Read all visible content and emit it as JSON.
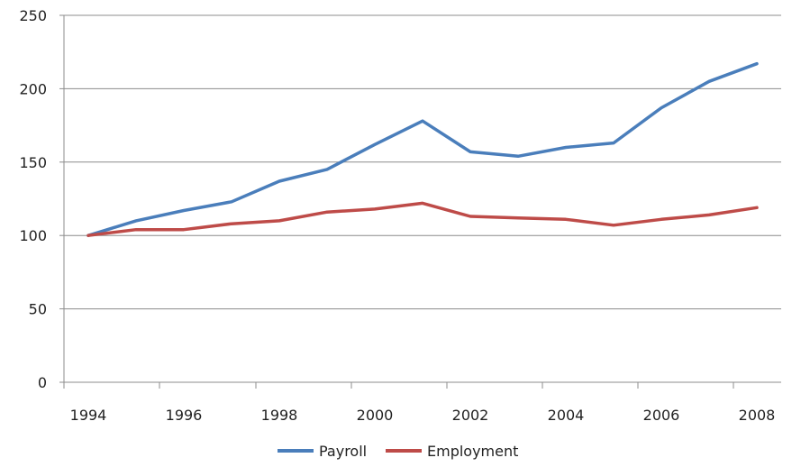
{
  "chart_data": {
    "type": "line",
    "x": [
      1994,
      1995,
      1996,
      1997,
      1998,
      1999,
      2000,
      2001,
      2002,
      2003,
      2004,
      2005,
      2006,
      2007,
      2008
    ],
    "x_tick_labels": [
      "1994",
      "1996",
      "1998",
      "2000",
      "2002",
      "2004",
      "2006",
      "2008"
    ],
    "y_tick_labels": [
      "0",
      "50",
      "100",
      "150",
      "200",
      "250"
    ],
    "ylim": [
      0,
      250
    ],
    "xlim": [
      1994,
      2008
    ],
    "grid": true,
    "legend_position": "bottom",
    "series": [
      {
        "name": "Payroll",
        "color": "#4a7ebb",
        "values": [
          100,
          110,
          117,
          123,
          137,
          145,
          162,
          178,
          157,
          154,
          160,
          163,
          187,
          205,
          217
        ]
      },
      {
        "name": "Employment",
        "color": "#be4b48",
        "values": [
          100,
          104,
          104,
          108,
          110,
          116,
          118,
          122,
          113,
          112,
          111,
          107,
          111,
          114,
          119
        ]
      }
    ]
  }
}
